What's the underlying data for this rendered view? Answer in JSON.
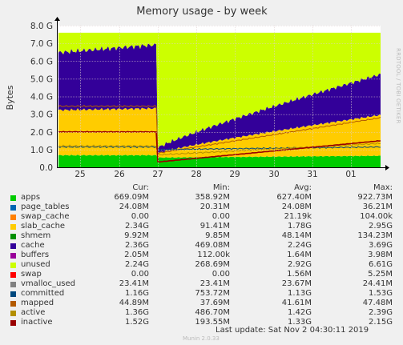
{
  "chart_data": {
    "type": "area",
    "title": "Memory usage - by week",
    "ylabel": "Bytes",
    "ylim": [
      0,
      8
    ],
    "yticks": [
      "0.0",
      "1.0 G",
      "2.0 G",
      "3.0 G",
      "4.0 G",
      "5.0 G",
      "6.0 G",
      "7.0 G",
      "8.0 G"
    ],
    "xticks": [
      "25",
      "26",
      "27",
      "28",
      "29",
      "30",
      "31",
      "01"
    ],
    "grid": true,
    "side_text": "RRDTOOL / TOBI OETIKER",
    "series": [
      {
        "name": "apps",
        "color": "#00cc00"
      },
      {
        "name": "page_tables",
        "color": "#0066b3"
      },
      {
        "name": "swap_cache",
        "color": "#ff8000"
      },
      {
        "name": "slab_cache",
        "color": "#ffcc00"
      },
      {
        "name": "shmem",
        "color": "#330099"
      },
      {
        "name": "cache",
        "color": "#990099"
      },
      {
        "name": "buffers",
        "color": "#ccff00"
      },
      {
        "name": "unused",
        "color": "#ff0000"
      },
      {
        "name": "swap",
        "color": "#808080"
      },
      {
        "name": "vmalloc_used",
        "color": "#008f00"
      },
      {
        "name": "committed",
        "color": "#00487d"
      },
      {
        "name": "mapped",
        "color": "#b35a00"
      },
      {
        "name": "active",
        "color": "#b38f00"
      },
      {
        "name": "inactive",
        "color": "#6b006b"
      }
    ]
  },
  "legend": {
    "headers": {
      "cur": "Cur:",
      "min": "Min:",
      "avg": "Avg:",
      "max": "Max:"
    },
    "rows": [
      {
        "name": "apps",
        "color": "#00cc00",
        "cur": "669.09M",
        "min": "358.92M",
        "avg": "627.40M",
        "max": "922.73M"
      },
      {
        "name": "page_tables",
        "color": "#0066b3",
        "cur": "24.08M",
        "min": "20.31M",
        "avg": "24.08M",
        "max": "36.21M"
      },
      {
        "name": "swap_cache",
        "color": "#ff8000",
        "cur": "0.00",
        "min": "0.00",
        "avg": "21.19k",
        "max": "104.00k"
      },
      {
        "name": "slab_cache",
        "color": "#ffcc00",
        "cur": "2.34G",
        "min": "91.41M",
        "avg": "1.78G",
        "max": "2.95G"
      },
      {
        "name": "shmem",
        "color": "#008f00",
        "cur": "9.92M",
        "min": "9.85M",
        "avg": "48.14M",
        "max": "134.23M"
      },
      {
        "name": "cache",
        "color": "#330099",
        "cur": "2.36G",
        "min": "469.08M",
        "avg": "2.24G",
        "max": "3.69G"
      },
      {
        "name": "buffers",
        "color": "#990099",
        "cur": "2.05M",
        "min": "112.00k",
        "avg": "1.64M",
        "max": "3.98M"
      },
      {
        "name": "unused",
        "color": "#ccff00",
        "cur": "2.24G",
        "min": "268.69M",
        "avg": "2.92G",
        "max": "6.61G"
      },
      {
        "name": "swap",
        "color": "#ff0000",
        "cur": "0.00",
        "min": "0.00",
        "avg": "1.56M",
        "max": "5.25M"
      },
      {
        "name": "vmalloc_used",
        "color": "#808080",
        "cur": "23.41M",
        "min": "23.41M",
        "avg": "23.67M",
        "max": "24.41M"
      },
      {
        "name": "committed",
        "color": "#00487d",
        "cur": "1.16G",
        "min": "753.72M",
        "avg": "1.13G",
        "max": "1.53G"
      },
      {
        "name": "mapped",
        "color": "#b35a00",
        "cur": "44.89M",
        "min": "37.69M",
        "avg": "41.61M",
        "max": "47.48M"
      },
      {
        "name": "active",
        "color": "#b38f00",
        "cur": "1.36G",
        "min": "486.70M",
        "avg": "1.42G",
        "max": "2.39G"
      },
      {
        "name": "inactive",
        "color": "#990000",
        "cur": "1.52G",
        "min": "193.55M",
        "avg": "1.33G",
        "max": "2.15G"
      }
    ]
  },
  "footer": {
    "last_update": "Last update:  Sat Nov  2 04:30:11 2019",
    "munin": "Munin 2.0.33"
  }
}
